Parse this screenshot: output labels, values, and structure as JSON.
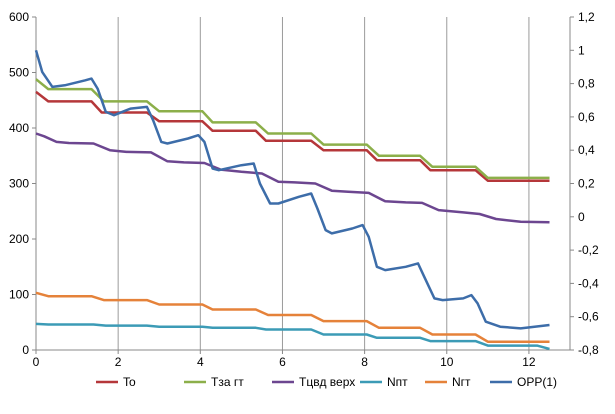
{
  "chart_data": {
    "type": "line",
    "title": "",
    "xlabel": "",
    "ylabel": "",
    "xlim": [
      0,
      13
    ],
    "ylim": [
      0,
      600
    ],
    "y2lim": [
      -0.8,
      1.2
    ],
    "x_ticks": [
      0,
      2,
      4,
      6,
      8,
      10,
      12
    ],
    "y_ticks": [
      0,
      100,
      200,
      300,
      400,
      500,
      600
    ],
    "y2_ticks": [
      "-0,8",
      "-0,6",
      "-0,4",
      "-0,2",
      "0",
      "0,2",
      "0,4",
      "0,6",
      "0,8",
      "1",
      "1,2"
    ],
    "grid": "vertical",
    "legend_position": "bottom",
    "series": [
      {
        "name": "To",
        "axis": "left",
        "color": "#b5373a",
        "points": [
          [
            0,
            465
          ],
          [
            0.3,
            448
          ],
          [
            1.35,
            448
          ],
          [
            1.6,
            428
          ],
          [
            2.7,
            428
          ],
          [
            3,
            412
          ],
          [
            4.05,
            412
          ],
          [
            4.3,
            395
          ],
          [
            5.35,
            395
          ],
          [
            5.6,
            377
          ],
          [
            6.7,
            377
          ],
          [
            7,
            360
          ],
          [
            8.05,
            360
          ],
          [
            8.3,
            342
          ],
          [
            9.35,
            342
          ],
          [
            9.6,
            324
          ],
          [
            10.7,
            324
          ],
          [
            11,
            305
          ],
          [
            12.5,
            305
          ]
        ]
      },
      {
        "name": "Tза гт",
        "axis": "left",
        "color": "#8caf4a",
        "points": [
          [
            0,
            488
          ],
          [
            0.3,
            470
          ],
          [
            1.35,
            470
          ],
          [
            1.65,
            448
          ],
          [
            2.7,
            448
          ],
          [
            3,
            430
          ],
          [
            4.05,
            430
          ],
          [
            4.3,
            410
          ],
          [
            5.35,
            410
          ],
          [
            5.65,
            390
          ],
          [
            6.7,
            390
          ],
          [
            7,
            370
          ],
          [
            8.05,
            370
          ],
          [
            8.35,
            350
          ],
          [
            9.35,
            350
          ],
          [
            9.65,
            330
          ],
          [
            10.7,
            330
          ],
          [
            11,
            310
          ],
          [
            12.5,
            310
          ]
        ]
      },
      {
        "name": "Тцвд верх",
        "axis": "left",
        "color": "#6c4690",
        "points": [
          [
            0,
            390
          ],
          [
            0.2,
            385
          ],
          [
            0.5,
            375
          ],
          [
            0.8,
            373
          ],
          [
            1.4,
            372
          ],
          [
            1.8,
            360
          ],
          [
            2.2,
            357
          ],
          [
            2.8,
            356
          ],
          [
            3.2,
            340
          ],
          [
            3.6,
            338
          ],
          [
            4.1,
            337
          ],
          [
            4.5,
            325
          ],
          [
            5,
            321
          ],
          [
            5.5,
            318
          ],
          [
            5.9,
            303
          ],
          [
            6.3,
            302
          ],
          [
            6.8,
            300
          ],
          [
            7.2,
            287
          ],
          [
            7.6,
            285
          ],
          [
            8.1,
            283
          ],
          [
            8.5,
            268
          ],
          [
            9,
            266
          ],
          [
            9.4,
            265
          ],
          [
            9.8,
            252
          ],
          [
            10.4,
            248
          ],
          [
            10.8,
            245
          ],
          [
            11.2,
            236
          ],
          [
            11.8,
            231
          ],
          [
            12.5,
            230
          ]
        ]
      },
      {
        "name": "Nпт",
        "axis": "left",
        "color": "#3c9bb6",
        "points": [
          [
            0,
            47
          ],
          [
            0.3,
            46
          ],
          [
            1.4,
            46
          ],
          [
            1.7,
            44
          ],
          [
            2.7,
            44
          ],
          [
            3,
            42
          ],
          [
            4.05,
            42
          ],
          [
            4.3,
            40
          ],
          [
            5.35,
            40
          ],
          [
            5.6,
            37
          ],
          [
            6.7,
            37
          ],
          [
            7,
            28
          ],
          [
            8.05,
            28
          ],
          [
            8.3,
            22
          ],
          [
            9.35,
            22
          ],
          [
            9.6,
            16
          ],
          [
            10.7,
            16
          ],
          [
            11,
            8
          ],
          [
            12.2,
            8
          ],
          [
            12.5,
            2
          ]
        ]
      },
      {
        "name": "Nгт",
        "axis": "left",
        "color": "#e5823a",
        "points": [
          [
            0,
            103
          ],
          [
            0.3,
            97
          ],
          [
            1.35,
            97
          ],
          [
            1.65,
            90
          ],
          [
            2.7,
            90
          ],
          [
            3,
            82
          ],
          [
            4.05,
            82
          ],
          [
            4.3,
            73
          ],
          [
            5.35,
            73
          ],
          [
            5.65,
            63
          ],
          [
            6.7,
            63
          ],
          [
            7,
            52
          ],
          [
            8.05,
            52
          ],
          [
            8.35,
            40
          ],
          [
            9.35,
            40
          ],
          [
            9.65,
            28
          ],
          [
            10.7,
            28
          ],
          [
            11,
            15
          ],
          [
            12.5,
            15
          ]
        ]
      },
      {
        "name": "OPP(1)",
        "axis": "right",
        "color": "#3d6da9",
        "points": [
          [
            0,
            1.0
          ],
          [
            0.15,
            0.87
          ],
          [
            0.4,
            0.78
          ],
          [
            0.7,
            0.79
          ],
          [
            1.2,
            0.82
          ],
          [
            1.35,
            0.83
          ],
          [
            1.5,
            0.77
          ],
          [
            1.7,
            0.63
          ],
          [
            1.9,
            0.61
          ],
          [
            2.3,
            0.65
          ],
          [
            2.7,
            0.66
          ],
          [
            2.85,
            0.58
          ],
          [
            3.05,
            0.45
          ],
          [
            3.2,
            0.44
          ],
          [
            3.7,
            0.47
          ],
          [
            3.95,
            0.49
          ],
          [
            4.1,
            0.45
          ],
          [
            4.3,
            0.29
          ],
          [
            4.45,
            0.28
          ],
          [
            5.0,
            0.31
          ],
          [
            5.3,
            0.32
          ],
          [
            5.45,
            0.2
          ],
          [
            5.7,
            0.08
          ],
          [
            5.9,
            0.08
          ],
          [
            6.4,
            0.12
          ],
          [
            6.7,
            0.14
          ],
          [
            6.85,
            0.05
          ],
          [
            7.05,
            -0.08
          ],
          [
            7.2,
            -0.1
          ],
          [
            7.7,
            -0.07
          ],
          [
            7.95,
            -0.05
          ],
          [
            8.1,
            -0.12
          ],
          [
            8.3,
            -0.3
          ],
          [
            8.5,
            -0.32
          ],
          [
            9.0,
            -0.3
          ],
          [
            9.3,
            -0.28
          ],
          [
            9.45,
            -0.36
          ],
          [
            9.7,
            -0.49
          ],
          [
            9.9,
            -0.5
          ],
          [
            10.4,
            -0.49
          ],
          [
            10.6,
            -0.47
          ],
          [
            10.75,
            -0.52
          ],
          [
            10.95,
            -0.63
          ],
          [
            11.3,
            -0.66
          ],
          [
            11.8,
            -0.67
          ],
          [
            12.5,
            -0.65
          ]
        ]
      }
    ]
  }
}
